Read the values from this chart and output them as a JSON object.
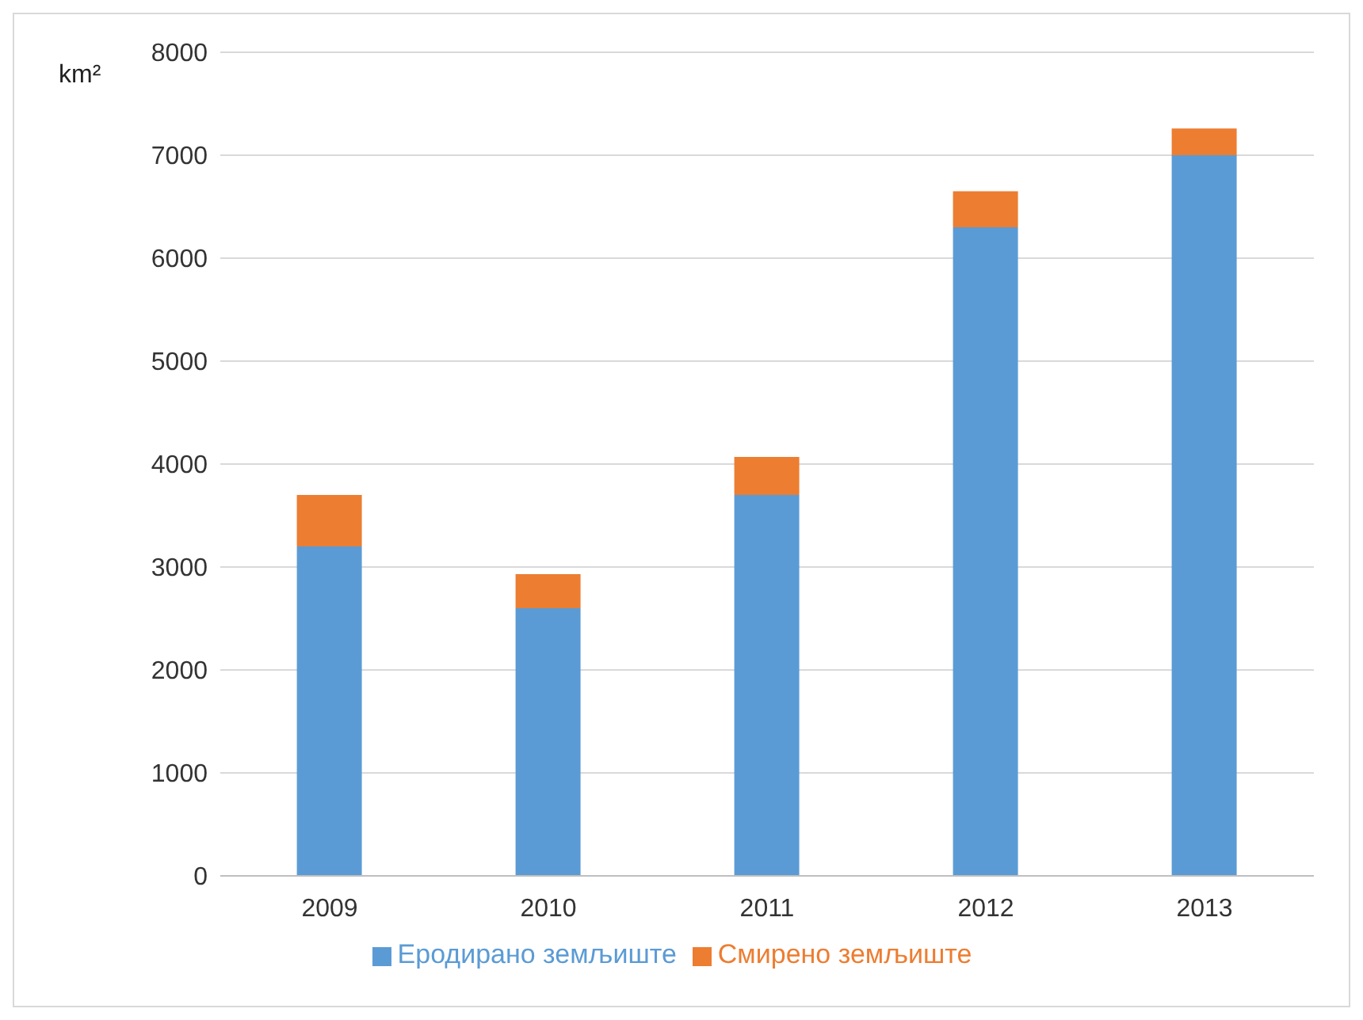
{
  "chart_data": {
    "type": "bar",
    "stacked": true,
    "ylabel": "km²",
    "categories": [
      "2009",
      "2010",
      "2011",
      "2012",
      "2013"
    ],
    "series": [
      {
        "name": "Еродирано земљиште",
        "color": "#5b9bd5",
        "values": [
          3200,
          2600,
          3700,
          6300,
          7000
        ]
      },
      {
        "name": "Смирено земљиште",
        "color": "#ed7d31",
        "values": [
          500,
          330,
          370,
          350,
          260
        ]
      }
    ],
    "ylim": [
      0,
      8000
    ],
    "yticks": [
      0,
      1000,
      2000,
      3000,
      4000,
      5000,
      6000,
      7000,
      8000
    ],
    "grid": "y",
    "legend": "bottom"
  }
}
